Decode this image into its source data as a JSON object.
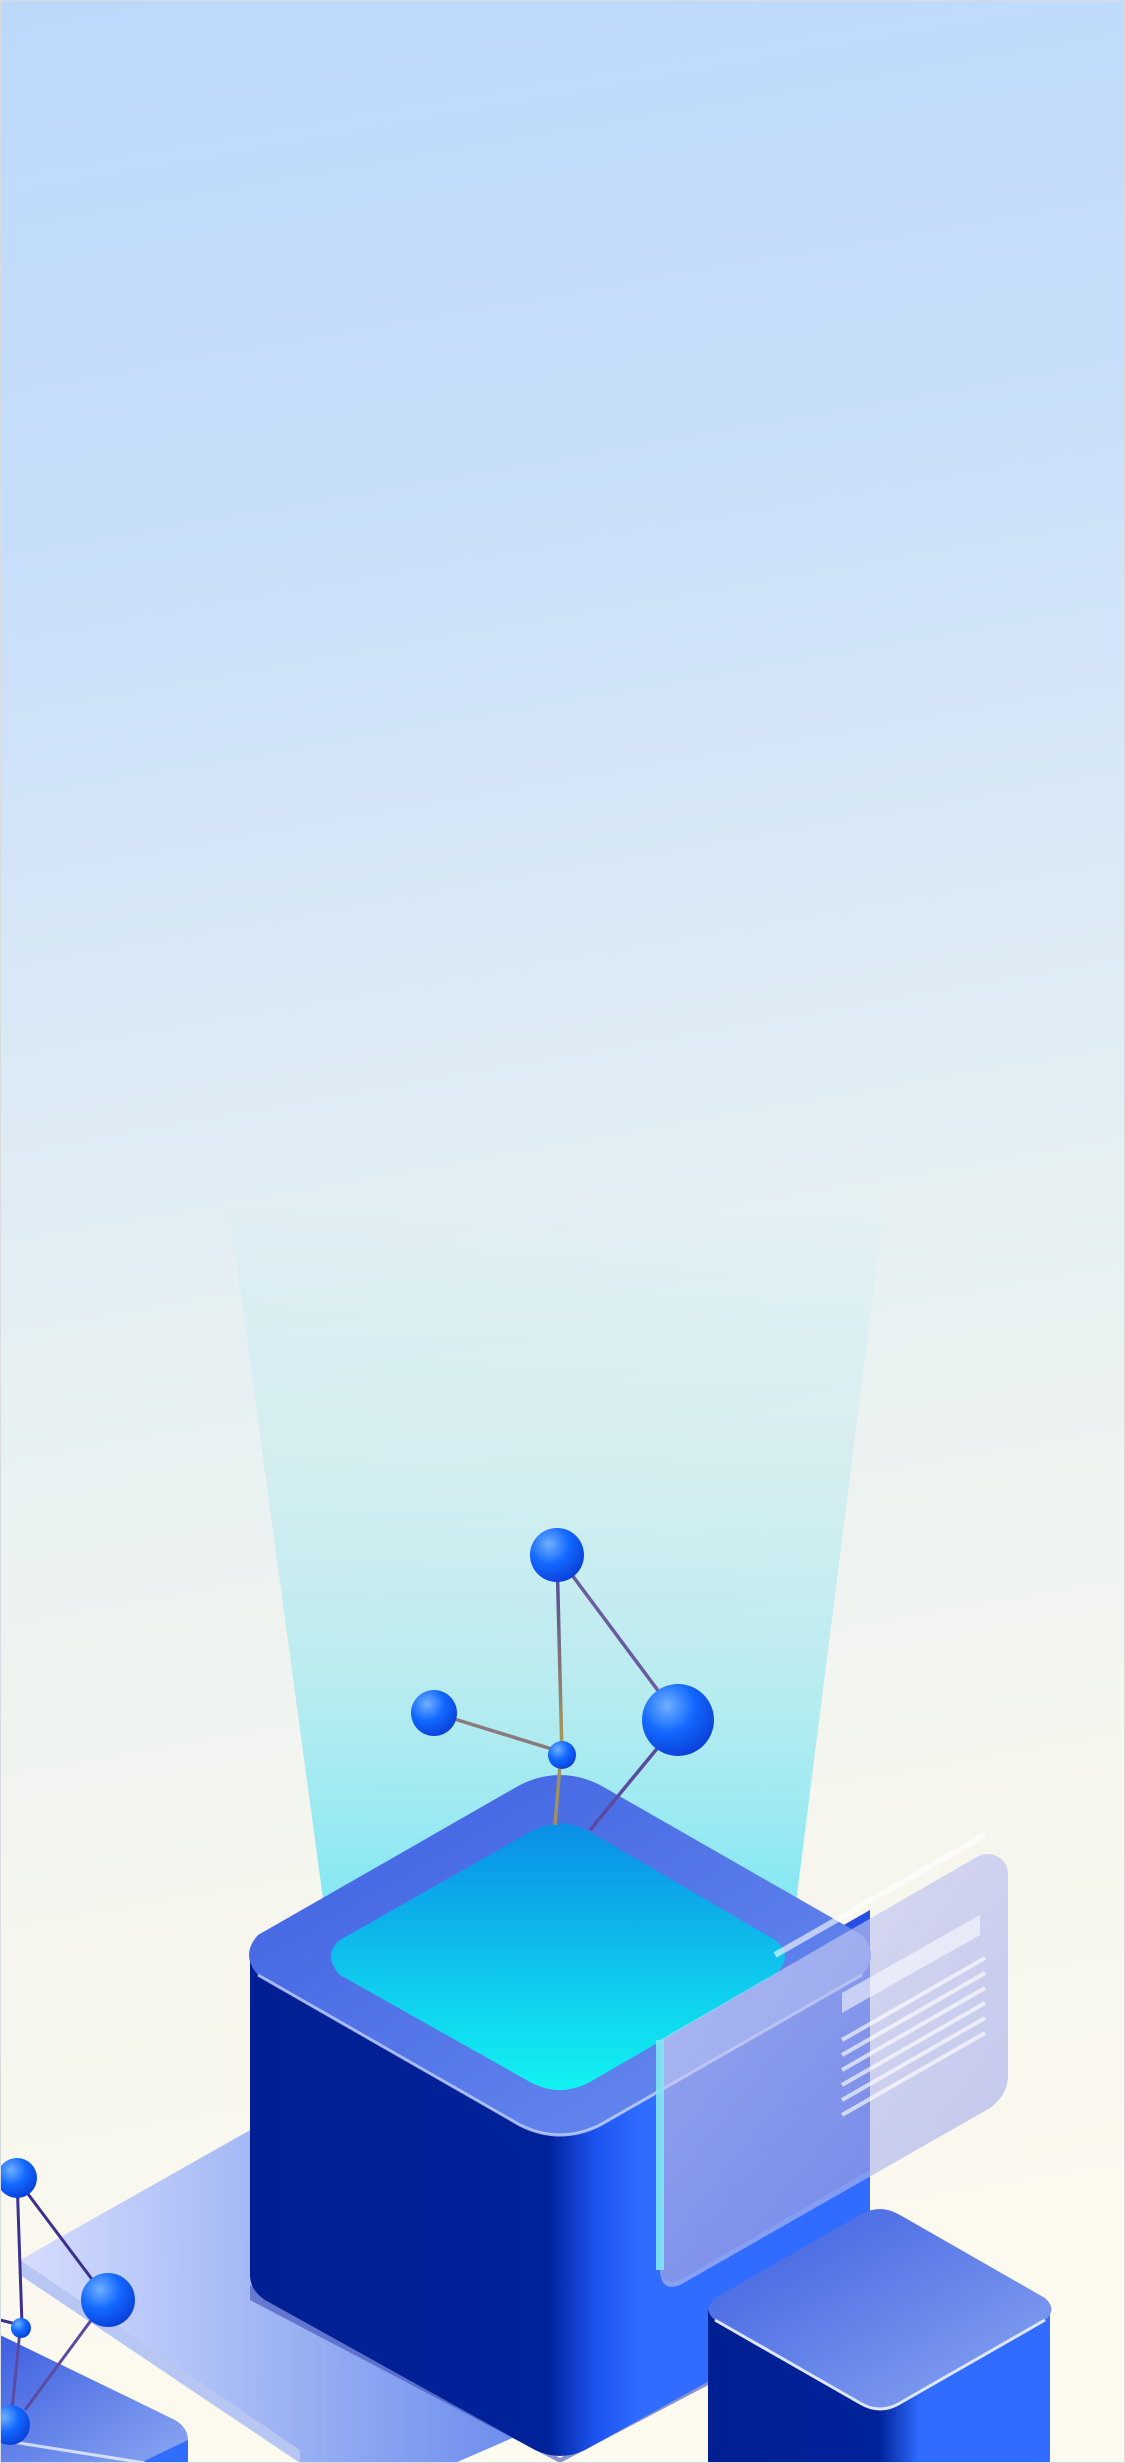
{
  "colors": {
    "sky_top": "#bcd9fb",
    "sky_mid": "#e3eef4",
    "background_cream": "#fdfaef",
    "beam_cyan": "#7fe8f2",
    "cube_dark": "#001e8f",
    "cube_bright": "#2f6cff",
    "cube_top_edge": "#4a72e6",
    "screen_cyan": "#10f0f0",
    "screen_blue": "#0a8fe6",
    "node_blue": "#0a5cff",
    "panel_lavender": "#c8c4ef"
  },
  "illustration": {
    "subject": "isometric-server-cubes-with-molecule",
    "molecule_nodes": 5,
    "small_molecule_nodes": 4,
    "panel_lines": 8
  }
}
